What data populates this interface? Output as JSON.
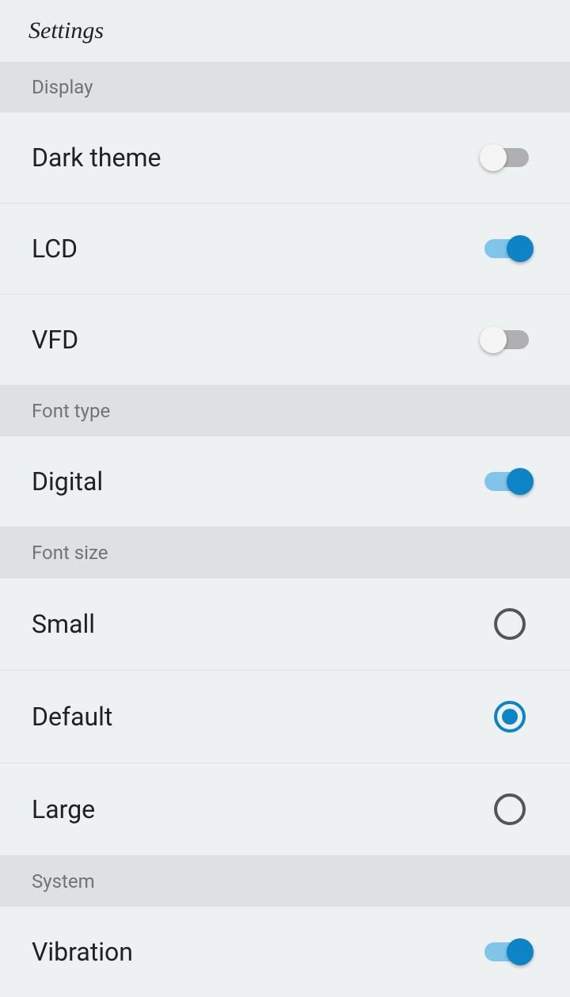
{
  "header": {
    "title": "Settings"
  },
  "colors": {
    "accent": "#0c84c6",
    "accent_light": "#81c5e8",
    "toggle_off_track": "#b0b0b0",
    "toggle_off_thumb": "#f5f5f5",
    "radio_unselected": "#555555",
    "page_bg": "#eceff1",
    "section_header_bg": "#dde1e3",
    "row_bg": "#eef1f2",
    "section_text": "#707478",
    "label_text": "#212121"
  },
  "sections": {
    "display": {
      "title": "Display",
      "items": [
        {
          "label": "Dark theme",
          "type": "toggle",
          "value": false
        },
        {
          "label": "LCD",
          "type": "toggle",
          "value": true
        },
        {
          "label": "VFD",
          "type": "toggle",
          "value": false
        }
      ]
    },
    "font_type": {
      "title": "Font type",
      "items": [
        {
          "label": "Digital",
          "type": "toggle",
          "value": true
        }
      ]
    },
    "font_size": {
      "title": "Font size",
      "items": [
        {
          "label": "Small",
          "type": "radio",
          "selected": false
        },
        {
          "label": "Default",
          "type": "radio",
          "selected": true
        },
        {
          "label": "Large",
          "type": "radio",
          "selected": false
        }
      ]
    },
    "system": {
      "title": "System",
      "items": [
        {
          "label": "Vibration",
          "type": "toggle",
          "value": true
        }
      ]
    }
  }
}
